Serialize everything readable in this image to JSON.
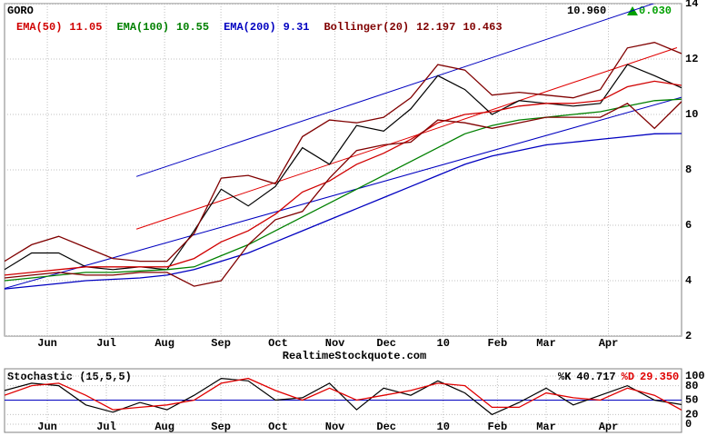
{
  "ticker": "GORO",
  "quote": {
    "price": 10.96,
    "price_label": "10.960",
    "change": 0.03,
    "change_label": "0.030"
  },
  "watermark": "RealtimeStockquote.com",
  "chart_data": [
    {
      "type": "line",
      "xlim": [
        0,
        25
      ],
      "xticks": [
        {
          "value": 1.58,
          "label": "Jun"
        },
        {
          "value": 3.76,
          "label": "Jul"
        },
        {
          "value": 5.91,
          "label": "Aug"
        },
        {
          "value": 7.99,
          "label": "Sep"
        },
        {
          "value": 10.1,
          "label": "Oct"
        },
        {
          "value": 12.2,
          "label": "Nov"
        },
        {
          "value": 14.1,
          "label": "Dec"
        },
        {
          "value": 16.2,
          "label": "10"
        },
        {
          "value": 18.2,
          "label": "Feb"
        },
        {
          "value": 20.0,
          "label": "Mar"
        },
        {
          "value": 22.3,
          "label": "Apr"
        }
      ],
      "ylim": [
        2,
        14
      ],
      "yticks": [
        2,
        4,
        6,
        8,
        10,
        12,
        14
      ],
      "grid": true,
      "series": [
        {
          "color": "#000000",
          "values": [
            4.4,
            5.0,
            5.0,
            4.5,
            4.4,
            4.5,
            4.4,
            5.8,
            7.3,
            6.7,
            7.4,
            8.8,
            8.2,
            9.6,
            9.4,
            10.2,
            11.4,
            10.9,
            10.0,
            10.5,
            10.4,
            10.3,
            10.4,
            11.8,
            11.4,
            10.96
          ]
        },
        {
          "name": "EMA(50)",
          "color": "#d00000",
          "values": [
            4.2,
            4.3,
            4.4,
            4.5,
            4.5,
            4.5,
            4.5,
            4.8,
            5.4,
            5.8,
            6.4,
            7.2,
            7.6,
            8.2,
            8.6,
            9.1,
            9.7,
            10.0,
            10.1,
            10.3,
            10.4,
            10.4,
            10.5,
            11.0,
            11.2,
            11.05
          ]
        },
        {
          "name": "EMA(100)",
          "color": "#008000",
          "values": [
            4.0,
            4.1,
            4.2,
            4.3,
            4.3,
            4.35,
            4.4,
            4.5,
            4.9,
            5.3,
            5.8,
            6.3,
            6.8,
            7.3,
            7.8,
            8.3,
            8.8,
            9.3,
            9.6,
            9.8,
            9.9,
            10.0,
            10.1,
            10.3,
            10.5,
            10.55
          ]
        },
        {
          "name": "EMA(200)",
          "color": "#0000c0",
          "values": [
            3.7,
            3.8,
            3.9,
            4.0,
            4.05,
            4.1,
            4.2,
            4.4,
            4.7,
            5.0,
            5.4,
            5.8,
            6.2,
            6.6,
            7.0,
            7.4,
            7.8,
            8.2,
            8.5,
            8.7,
            8.9,
            9.0,
            9.1,
            9.2,
            9.3,
            9.31
          ]
        },
        {
          "name": "Bollinger(20)",
          "color": "#800000",
          "values": [
            4.7,
            5.3,
            5.6,
            5.2,
            4.8,
            4.7,
            4.7,
            5.7,
            7.7,
            7.8,
            7.5,
            9.2,
            9.8,
            9.7,
            9.9,
            10.6,
            11.8,
            11.6,
            10.7,
            10.8,
            10.7,
            10.6,
            10.9,
            12.4,
            12.6,
            12.197
          ]
        },
        {
          "color": "#800000",
          "values": [
            4.1,
            4.2,
            4.3,
            4.2,
            4.2,
            4.3,
            4.3,
            3.8,
            4.0,
            5.3,
            6.2,
            6.5,
            7.7,
            8.7,
            8.9,
            9.0,
            9.8,
            9.7,
            9.5,
            9.7,
            9.9,
            9.9,
            9.9,
            10.4,
            9.5,
            10.463
          ]
        }
      ],
      "trendlines": [
        {
          "color": "#e00000",
          "x": [
            4.87,
            24.83
          ],
          "y": [
            5.86,
            12.41
          ]
        },
        {
          "color": "#0000c0",
          "x": [
            4.87,
            25
          ],
          "y": [
            7.76,
            14.34
          ]
        },
        {
          "color": "#0000c0",
          "x": [
            0,
            25
          ],
          "y": [
            3.72,
            10.62
          ]
        }
      ]
    },
    {
      "type": "line",
      "title": "Stochastic (15,5,5)",
      "xlim": [
        0,
        25
      ],
      "xticks": [
        {
          "value": 1.58,
          "label": "Jun"
        },
        {
          "value": 3.76,
          "label": "Jul"
        },
        {
          "value": 5.91,
          "label": "Aug"
        },
        {
          "value": 7.99,
          "label": "Sep"
        },
        {
          "value": 10.1,
          "label": "Oct"
        },
        {
          "value": 12.2,
          "label": "Nov"
        },
        {
          "value": 14.1,
          "label": "Dec"
        },
        {
          "value": 16.2,
          "label": "10"
        },
        {
          "value": 18.2,
          "label": "Feb"
        },
        {
          "value": 20.0,
          "label": "Mar"
        },
        {
          "value": 22.3,
          "label": "Apr"
        }
      ],
      "ylim": [
        0,
        100
      ],
      "yticks": [
        0,
        20,
        50,
        80,
        100
      ],
      "series": [
        {
          "name": "%K",
          "color": "#000000",
          "values": [
            70,
            85,
            80,
            40,
            25,
            45,
            30,
            60,
            95,
            90,
            50,
            55,
            85,
            30,
            75,
            60,
            90,
            65,
            20,
            45,
            75,
            40,
            60,
            80,
            50,
            40.717
          ]
        },
        {
          "name": "%D",
          "color": "#e00000",
          "values": [
            60,
            80,
            85,
            60,
            30,
            35,
            40,
            50,
            85,
            95,
            70,
            50,
            75,
            50,
            60,
            70,
            85,
            80,
            35,
            35,
            65,
            55,
            50,
            75,
            60,
            29.35
          ],
          "value_labels": [
            null,
            null,
            null,
            null,
            null,
            null,
            null,
            null,
            null,
            null,
            null,
            null,
            null,
            null,
            null,
            null,
            null,
            null,
            null,
            null,
            null,
            null,
            null,
            null,
            null,
            "29.350"
          ]
        }
      ]
    }
  ]
}
